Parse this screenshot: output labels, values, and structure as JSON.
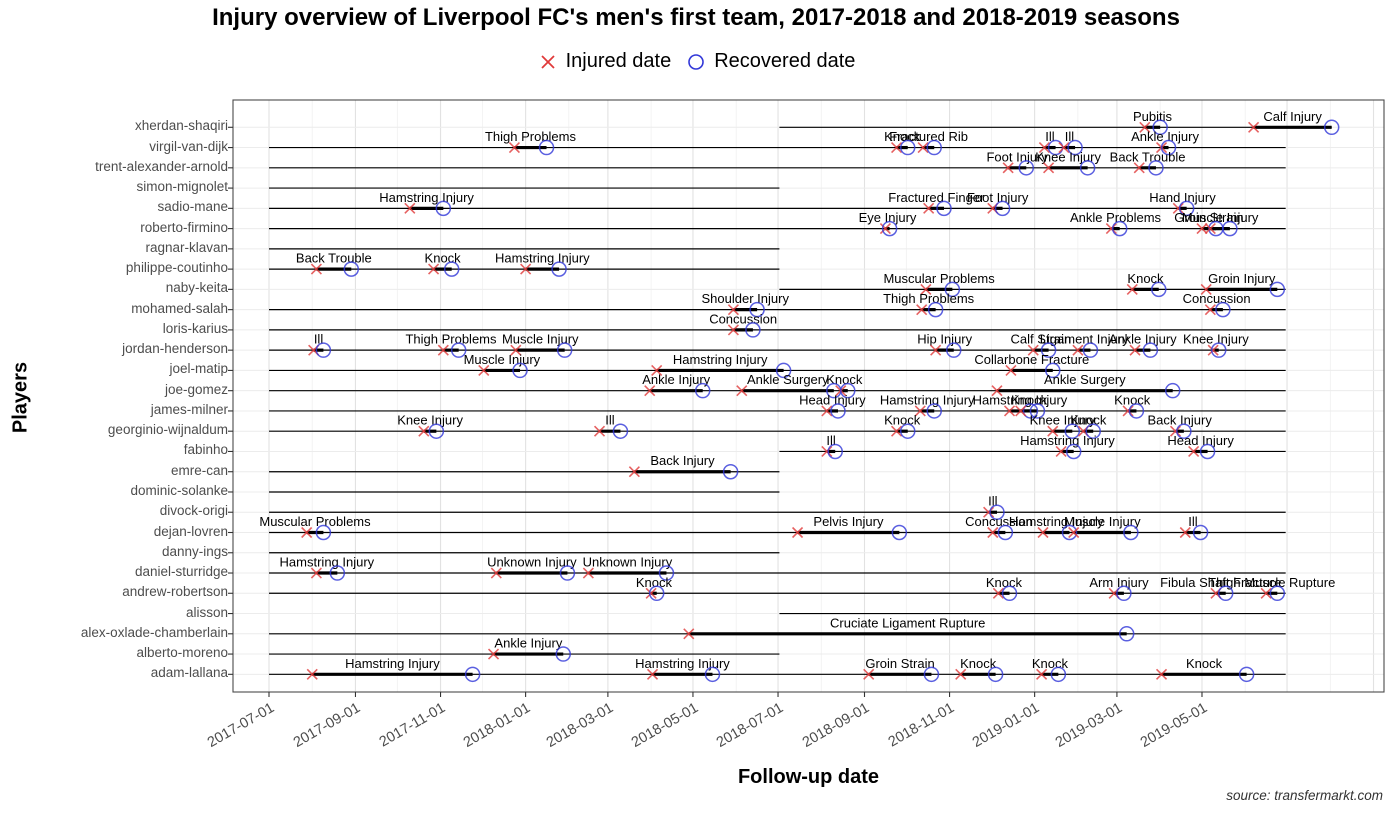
{
  "title": "Injury overview of Liverpool FC's men's first team, 2017-2018 and 2018-2019 seasons",
  "legend": {
    "injured_label": "Injured date",
    "recovered_label": "Recovered date",
    "injured_color": "#e03a3a",
    "recovered_color": "#3137d8"
  },
  "axes": {
    "x_title": "Follow-up date",
    "y_title": "Players",
    "x_ticks": [
      "2017-07-01",
      "2017-09-01",
      "2017-11-01",
      "2018-01-01",
      "2018-03-01",
      "2018-05-01",
      "2018-07-01",
      "2018-09-01",
      "2018-11-01",
      "2019-01-01",
      "2019-03-01",
      "2019-05-01"
    ]
  },
  "caption": "source: transfermarkt.com",
  "chart_data": {
    "type": "timeline",
    "title": "Injury overview of Liverpool FC's men's first team, 2017-2018 and 2018-2019 seasons",
    "xlabel": "Follow-up date",
    "ylabel": "Players",
    "x_range": [
      "2017-06-05",
      "2019-09-10"
    ],
    "x_tick_interval": "2 months",
    "grid": true,
    "legend_position": "top",
    "timeline_color": "#000000",
    "players": [
      {
        "name": "xherdan-shaqiri",
        "spans": [
          [
            "2018-07-02",
            "2019-08-02"
          ]
        ],
        "injuries": [
          {
            "label": "Pubitis",
            "from": "2019-03-21",
            "to": "2019-04-01"
          },
          {
            "label": "Calf Injury",
            "from": "2019-06-07",
            "to": "2019-08-02"
          }
        ]
      },
      {
        "name": "virgil-van-dijk",
        "spans": [
          [
            "2017-07-01",
            "2019-06-30"
          ]
        ],
        "injuries": [
          {
            "label": "Thigh Problems",
            "from": "2017-12-24",
            "to": "2018-01-16"
          },
          {
            "label": "Knock",
            "from": "2018-09-24",
            "to": "2018-10-02"
          },
          {
            "label": "Fractured Rib",
            "from": "2018-10-13",
            "to": "2018-10-21"
          },
          {
            "label": "Ill",
            "from": "2019-01-08",
            "to": "2019-01-16"
          },
          {
            "label": "Ill",
            "from": "2019-01-22",
            "to": "2019-01-30"
          },
          {
            "label": "Ankle Injury",
            "from": "2019-04-02",
            "to": "2019-04-07"
          }
        ]
      },
      {
        "name": "trent-alexander-arnold",
        "spans": [
          [
            "2017-07-01",
            "2019-06-30"
          ]
        ],
        "injuries": [
          {
            "label": "Foot Injury",
            "from": "2018-12-13",
            "to": "2018-12-26"
          },
          {
            "label": "Knee Injury",
            "from": "2019-01-11",
            "to": "2019-02-08"
          },
          {
            "label": "Back Trouble",
            "from": "2019-03-17",
            "to": "2019-03-29"
          }
        ]
      },
      {
        "name": "simon-mignolet",
        "spans": [
          [
            "2017-07-01",
            "2018-07-02"
          ]
        ],
        "injuries": []
      },
      {
        "name": "sadio-mane",
        "spans": [
          [
            "2017-07-01",
            "2019-06-30"
          ]
        ],
        "injuries": [
          {
            "label": "Hamstring Injury",
            "from": "2017-10-10",
            "to": "2017-11-03"
          },
          {
            "label": "Fractured Finger",
            "from": "2018-10-17",
            "to": "2018-10-28"
          },
          {
            "label": "Foot Injury",
            "from": "2018-12-02",
            "to": "2018-12-09"
          },
          {
            "label": "Hand Injury",
            "from": "2019-04-14",
            "to": "2019-04-20"
          }
        ]
      },
      {
        "name": "roberto-firmino",
        "spans": [
          [
            "2017-07-01",
            "2019-06-30"
          ]
        ],
        "injuries": [
          {
            "label": "Eye Injury",
            "from": "2018-09-16",
            "to": "2018-09-19"
          },
          {
            "label": "Ankle Problems",
            "from": "2019-02-25",
            "to": "2019-03-03"
          },
          {
            "label": "Groin Strain",
            "from": "2019-05-01",
            "to": "2019-05-11"
          },
          {
            "label": "Muscle Injury",
            "from": "2019-05-07",
            "to": "2019-05-21"
          }
        ]
      },
      {
        "name": "ragnar-klavan",
        "spans": [
          [
            "2017-07-01",
            "2018-07-02"
          ]
        ],
        "injuries": []
      },
      {
        "name": "philippe-coutinho",
        "spans": [
          [
            "2017-07-01",
            "2018-07-02"
          ]
        ],
        "injuries": [
          {
            "label": "Back Trouble",
            "from": "2017-08-04",
            "to": "2017-08-29"
          },
          {
            "label": "Knock",
            "from": "2017-10-27",
            "to": "2017-11-09"
          },
          {
            "label": "Hamstring Injury",
            "from": "2018-01-01",
            "to": "2018-01-25"
          }
        ]
      },
      {
        "name": "naby-keita",
        "spans": [
          [
            "2018-07-02",
            "2019-06-30"
          ]
        ],
        "injuries": [
          {
            "label": "Muscular Problems",
            "from": "2018-10-15",
            "to": "2018-11-03"
          },
          {
            "label": "Knock",
            "from": "2019-03-12",
            "to": "2019-03-31"
          },
          {
            "label": "Groin Injury",
            "from": "2019-05-04",
            "to": "2019-06-24"
          }
        ]
      },
      {
        "name": "mohamed-salah",
        "spans": [
          [
            "2017-07-01",
            "2019-06-30"
          ]
        ],
        "injuries": [
          {
            "label": "Shoulder Injury",
            "from": "2018-05-30",
            "to": "2018-06-16"
          },
          {
            "label": "Thigh Problems",
            "from": "2018-10-12",
            "to": "2018-10-22"
          },
          {
            "label": "Concussion",
            "from": "2019-05-07",
            "to": "2019-05-16"
          }
        ]
      },
      {
        "name": "loris-karius",
        "spans": [
          [
            "2017-07-01",
            "2019-06-30"
          ]
        ],
        "injuries": [
          {
            "label": "Concussion",
            "from": "2018-05-30",
            "to": "2018-06-13"
          }
        ]
      },
      {
        "name": "jordan-henderson",
        "spans": [
          [
            "2017-07-01",
            "2019-06-30"
          ]
        ],
        "injuries": [
          {
            "label": "Ill",
            "from": "2017-08-02",
            "to": "2017-08-09"
          },
          {
            "label": "Thigh Problems",
            "from": "2017-11-03",
            "to": "2017-11-14"
          },
          {
            "label": "Muscle Injury",
            "from": "2017-12-25",
            "to": "2018-01-29"
          },
          {
            "label": "Hip Injury",
            "from": "2018-10-22",
            "to": "2018-11-04"
          },
          {
            "label": "Calf Strain",
            "from": "2018-12-31",
            "to": "2019-01-11"
          },
          {
            "label": "Ligament Injury",
            "from": "2019-02-01",
            "to": "2019-02-10"
          },
          {
            "label": "Ankle Injury",
            "from": "2019-03-14",
            "to": "2019-03-25"
          },
          {
            "label": "Knee Injury",
            "from": "2019-05-09",
            "to": "2019-05-13"
          }
        ]
      },
      {
        "name": "joel-matip",
        "spans": [
          [
            "2017-07-01",
            "2019-06-30"
          ]
        ],
        "injuries": [
          {
            "label": "Muscle Injury",
            "from": "2017-12-02",
            "to": "2017-12-28"
          },
          {
            "label": "Hamstring Injury",
            "from": "2018-04-05",
            "to": "2018-07-05"
          },
          {
            "label": "Collarbone Fracture",
            "from": "2018-12-15",
            "to": "2019-01-14"
          }
        ]
      },
      {
        "name": "joe-gomez",
        "spans": [
          [
            "2017-07-01",
            "2019-06-30"
          ]
        ],
        "injuries": [
          {
            "label": "Ankle Injury",
            "from": "2018-03-31",
            "to": "2018-05-08"
          },
          {
            "label": "Ankle Surgery",
            "from": "2018-06-05",
            "to": "2018-08-10"
          },
          {
            "label": "Knock",
            "from": "2018-08-15",
            "to": "2018-08-20"
          },
          {
            "label": "Ankle Surgery",
            "from": "2018-12-05",
            "to": "2019-04-10"
          }
        ]
      },
      {
        "name": "james-milner",
        "spans": [
          [
            "2017-07-01",
            "2019-06-30"
          ]
        ],
        "injuries": [
          {
            "label": "Head Injury",
            "from": "2018-08-05",
            "to": "2018-08-13"
          },
          {
            "label": "Hamstring Injury",
            "from": "2018-10-11",
            "to": "2018-10-21"
          },
          {
            "label": "Hamstring Injury",
            "from": "2018-12-14",
            "to": "2018-12-29"
          },
          {
            "label": "Knock",
            "from": "2018-12-22",
            "to": "2019-01-03"
          },
          {
            "label": "Knock",
            "from": "2019-03-09",
            "to": "2019-03-15"
          }
        ]
      },
      {
        "name": "georginio-wijnaldum",
        "spans": [
          [
            "2017-07-01",
            "2019-06-30"
          ]
        ],
        "injuries": [
          {
            "label": "Knee Injury",
            "from": "2017-10-20",
            "to": "2017-10-29"
          },
          {
            "label": "Ill",
            "from": "2018-02-23",
            "to": "2018-03-10"
          },
          {
            "label": "Knock",
            "from": "2018-09-24",
            "to": "2018-10-02"
          },
          {
            "label": "Knee Injury",
            "from": "2019-01-14",
            "to": "2019-01-28"
          },
          {
            "label": "Knock",
            "from": "2019-02-05",
            "to": "2019-02-12"
          },
          {
            "label": "Back Injury",
            "from": "2019-04-12",
            "to": "2019-04-18"
          }
        ]
      },
      {
        "name": "fabinho",
        "spans": [
          [
            "2018-07-02",
            "2019-06-30"
          ]
        ],
        "injuries": [
          {
            "label": "Ill",
            "from": "2018-08-05",
            "to": "2018-08-11"
          },
          {
            "label": "Hamstring Injury",
            "from": "2019-01-20",
            "to": "2019-01-29"
          },
          {
            "label": "Head Injury",
            "from": "2019-04-25",
            "to": "2019-05-05"
          }
        ]
      },
      {
        "name": "emre-can",
        "spans": [
          [
            "2017-07-01",
            "2018-07-02"
          ]
        ],
        "injuries": [
          {
            "label": "Back Injury",
            "from": "2018-03-20",
            "to": "2018-05-28"
          }
        ]
      },
      {
        "name": "dominic-solanke",
        "spans": [
          [
            "2017-07-01",
            "2018-07-02"
          ]
        ],
        "injuries": []
      },
      {
        "name": "divock-origi",
        "spans": [
          [
            "2017-07-01",
            "2019-06-30"
          ]
        ],
        "injuries": [
          {
            "label": "Ill",
            "from": "2018-11-29",
            "to": "2018-12-05"
          }
        ]
      },
      {
        "name": "dejan-lovren",
        "spans": [
          [
            "2017-07-01",
            "2019-06-30"
          ]
        ],
        "injuries": [
          {
            "label": "Muscular Problems",
            "from": "2017-07-28",
            "to": "2017-08-09"
          },
          {
            "label": "Pelvis Injury",
            "from": "2018-07-15",
            "to": "2018-09-26"
          },
          {
            "label": "Concussion",
            "from": "2018-12-02",
            "to": "2018-12-11"
          },
          {
            "label": "Hamstring Injury",
            "from": "2019-01-07",
            "to": "2019-01-26"
          },
          {
            "label": "Muscle Injury",
            "from": "2019-01-29",
            "to": "2019-03-11"
          },
          {
            "label": "Ill",
            "from": "2019-04-19",
            "to": "2019-04-30"
          }
        ]
      },
      {
        "name": "danny-ings",
        "spans": [
          [
            "2017-07-01",
            "2018-07-02"
          ]
        ],
        "injuries": []
      },
      {
        "name": "daniel-sturridge",
        "spans": [
          [
            "2017-07-01",
            "2019-06-30"
          ]
        ],
        "injuries": [
          {
            "label": "Hamstring Injury",
            "from": "2017-08-04",
            "to": "2017-08-19"
          },
          {
            "label": "Unknown Injury",
            "from": "2017-12-11",
            "to": "2018-01-31"
          },
          {
            "label": "Unknown Injury",
            "from": "2018-02-15",
            "to": "2018-04-12"
          }
        ]
      },
      {
        "name": "andrew-robertson",
        "spans": [
          [
            "2017-07-01",
            "2019-06-30"
          ]
        ],
        "injuries": [
          {
            "label": "Knock",
            "from": "2018-04-01",
            "to": "2018-04-05"
          },
          {
            "label": "Knock",
            "from": "2018-12-06",
            "to": "2018-12-14"
          },
          {
            "label": "Arm Injury",
            "from": "2019-02-27",
            "to": "2019-03-06"
          },
          {
            "label": "Fibula Shaft Fracture",
            "from": "2019-05-11",
            "to": "2019-05-18"
          },
          {
            "label": "Thigh Muscle Rupture",
            "from": "2019-06-16",
            "to": "2019-06-24"
          }
        ]
      },
      {
        "name": "alisson",
        "spans": [
          [
            "2018-07-02",
            "2019-06-30"
          ]
        ],
        "injuries": []
      },
      {
        "name": "alex-oxlade-chamberlain",
        "spans": [
          [
            "2017-07-01",
            "2019-06-30"
          ]
        ],
        "injuries": [
          {
            "label": "Cruciate Ligament Rupture",
            "from": "2018-04-28",
            "to": "2019-03-08"
          }
        ]
      },
      {
        "name": "alberto-moreno",
        "spans": [
          [
            "2017-07-01",
            "2018-07-02"
          ]
        ],
        "injuries": [
          {
            "label": "Ankle Injury",
            "from": "2017-12-09",
            "to": "2018-01-28"
          }
        ]
      },
      {
        "name": "adam-lallana",
        "spans": [
          [
            "2017-07-01",
            "2019-06-30"
          ]
        ],
        "injuries": [
          {
            "label": "Hamstring Injury",
            "from": "2017-08-01",
            "to": "2017-11-24"
          },
          {
            "label": "Hamstring Injury",
            "from": "2018-04-02",
            "to": "2018-05-15"
          },
          {
            "label": "Groin Strain",
            "from": "2018-09-04",
            "to": "2018-10-19"
          },
          {
            "label": "Knock",
            "from": "2018-11-09",
            "to": "2018-12-04"
          },
          {
            "label": "Knock",
            "from": "2019-01-06",
            "to": "2019-01-18"
          },
          {
            "label": "Knock",
            "from": "2019-04-02",
            "to": "2019-06-02"
          }
        ]
      }
    ]
  }
}
